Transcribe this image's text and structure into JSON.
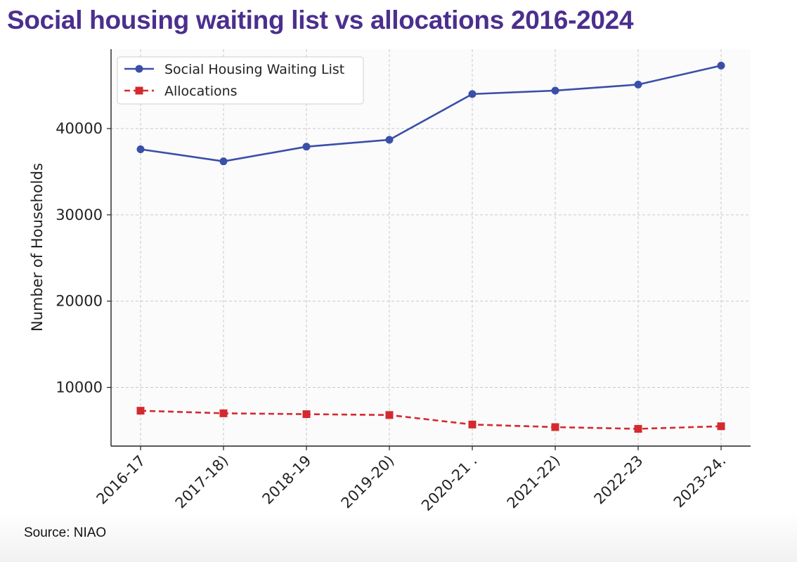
{
  "title": "Social housing waiting list vs allocations 2016-2024",
  "source": "Source: NIAO",
  "colors": {
    "title": "#4b2f8e",
    "waiting_list": "#3a4fa8",
    "allocations": "#d42a2f",
    "grid": "#c9c9c9",
    "plot_background": "#fbfbfc"
  },
  "chart_data": {
    "type": "line",
    "title": "Social housing waiting list vs allocations 2016-2024",
    "xlabel": "",
    "ylabel": "Number of Households",
    "categories": [
      "2016-17",
      "2017-18",
      "2018-19",
      "2019-20",
      "2020-21",
      "2021-22",
      "2022-23",
      "2023-24"
    ],
    "tick_labels": [
      "2016-17",
      "2017-18)",
      "2018-19",
      "2019-20)",
      "2020-21 .",
      "2021-22)",
      "2022-23",
      "2023-24."
    ],
    "y_ticks": [
      10000,
      20000,
      30000,
      40000
    ],
    "y_tick_labels": [
      "10000",
      "20000",
      "30000",
      "40000"
    ],
    "ylim": [
      3200,
      49200
    ],
    "grid": true,
    "legend_position": "top-left",
    "series": [
      {
        "name": "Social Housing Waiting List",
        "style": "solid line, circle markers",
        "values": [
          37600,
          36200,
          37900,
          38700,
          44000,
          44400,
          45100,
          47300
        ]
      },
      {
        "name": "Allocations",
        "style": "dashed line, square markers",
        "values": [
          7300,
          7000,
          6900,
          6800,
          5700,
          5400,
          5200,
          5500
        ]
      }
    ]
  }
}
